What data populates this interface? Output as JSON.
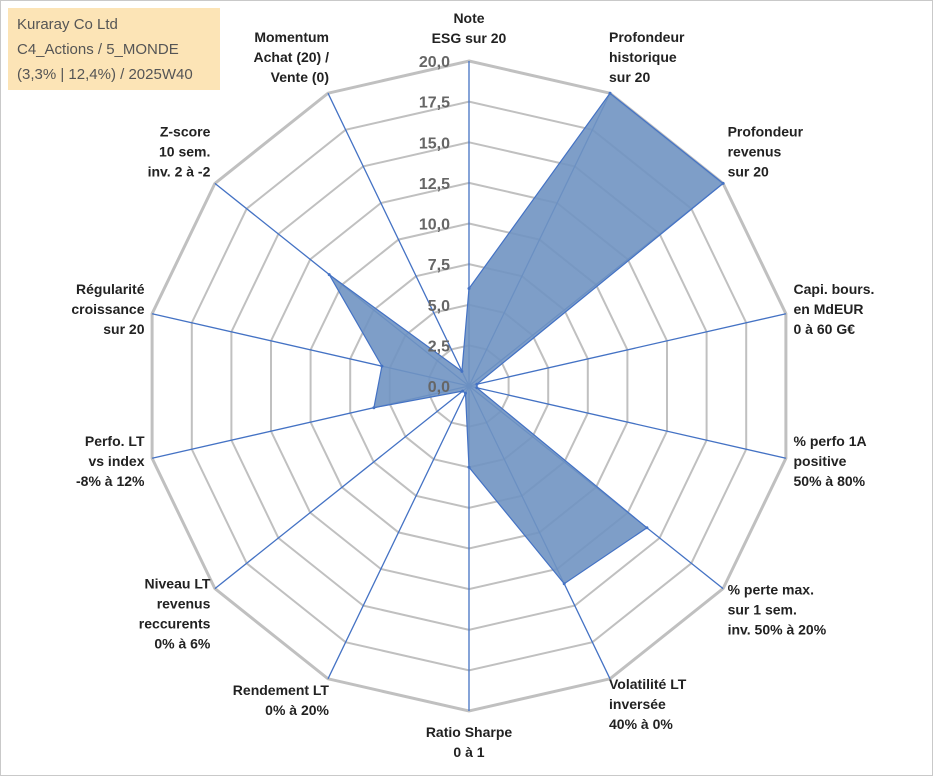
{
  "info": {
    "company": "Kuraray Co Ltd",
    "category": "C4_Actions / 5_MONDE",
    "details": "(3,3% | 12,4%) / 2025W40"
  },
  "colors": {
    "fill": "#7094c2",
    "stroke": "#4472c4",
    "grid": "#c0c0c0",
    "axis": "#4472c4",
    "info_bg": "#fce4b6"
  },
  "chart_data": {
    "type": "radar",
    "rmax": 20,
    "tick_labels": [
      "0,0",
      "2,5",
      "5,0",
      "7,5",
      "10,0",
      "12,5",
      "15,0",
      "17,5",
      "20,0"
    ],
    "axes": [
      {
        "lines": [
          "Note",
          "ESG sur 20"
        ],
        "value": 6
      },
      {
        "lines": [
          "Profondeur",
          "historique",
          "sur 20"
        ],
        "value": 20
      },
      {
        "lines": [
          "Profondeur",
          "revenus",
          "sur 20"
        ],
        "value": 20
      },
      {
        "lines": [
          "Capi. bours.",
          "en MdEUR",
          "0 à 60 G€"
        ],
        "value": 0.5
      },
      {
        "lines": [
          "% perfo 1A",
          "positive",
          "50% à 80%"
        ],
        "value": 0.5
      },
      {
        "lines": [
          "% perte max.",
          "sur 1 sem.",
          "inv. 50% à 20%"
        ],
        "value": 14
      },
      {
        "lines": [
          "Volatilité LT",
          "inversée",
          "40% à 0%"
        ],
        "value": 13.5
      },
      {
        "lines": [
          "Ratio Sharpe",
          "0 à 1"
        ],
        "value": 5
      },
      {
        "lines": [
          "Rendement LT",
          "0% à 20%"
        ],
        "value": 0.5
      },
      {
        "lines": [
          "Niveau LT",
          "revenus",
          "reccurents",
          "0% à 6%"
        ],
        "value": 0.5
      },
      {
        "lines": [
          "Perfo. LT",
          "vs index",
          "-8% à 12%"
        ],
        "value": 6
      },
      {
        "lines": [
          "Régularité",
          "croissance",
          "sur 20"
        ],
        "value": 5.5
      },
      {
        "lines": [
          "Z-score",
          "10 sem.",
          "inv. 2 à -2"
        ],
        "value": 11
      },
      {
        "lines": [
          "Momentum",
          "Achat (20) /",
          "Vente (0)"
        ],
        "value": 1
      }
    ]
  }
}
